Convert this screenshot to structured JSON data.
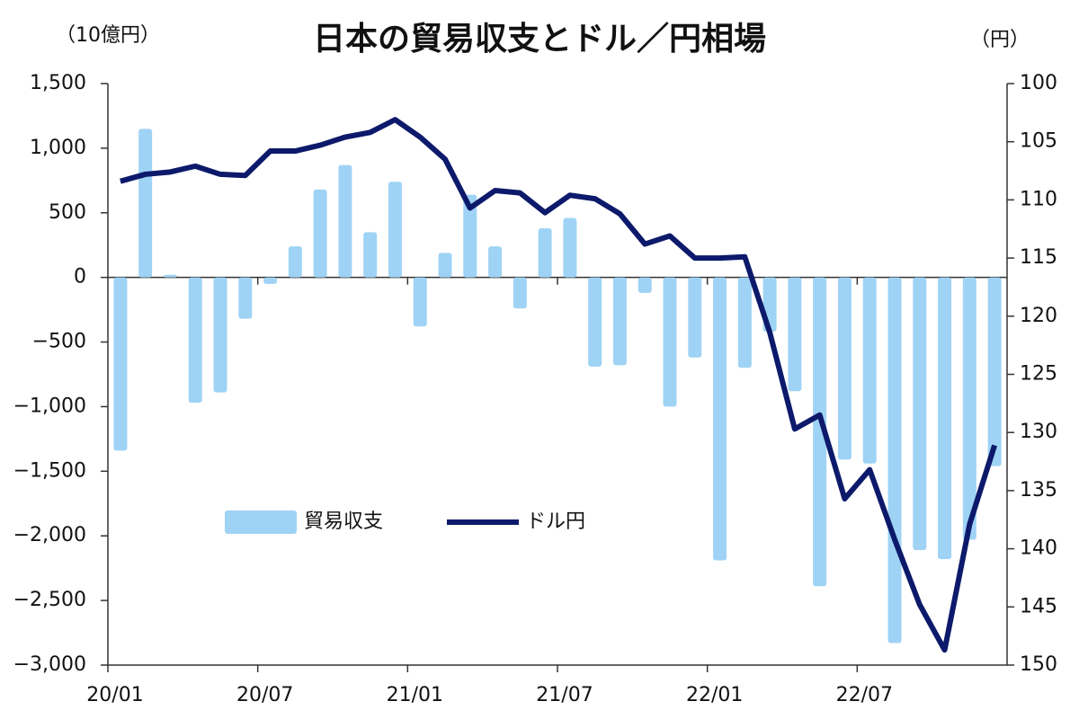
{
  "chart_data": {
    "type": "bar_line",
    "title": "日本の貿易収支とドル／円相場",
    "y_label": "（10億円）",
    "y2_label": "（円）",
    "categories": [
      "20/01",
      null,
      null,
      null,
      null,
      null,
      "20/07",
      null,
      null,
      null,
      null,
      null,
      "21/01",
      null,
      null,
      null,
      null,
      null,
      "21/07",
      null,
      null,
      null,
      null,
      null,
      "22/01",
      null,
      null,
      null,
      null,
      null,
      "22/07",
      null,
      null,
      null,
      null,
      null
    ],
    "series": [
      {
        "name": "貿易収支",
        "type": "bar",
        "color": "#9fd3f5",
        "values": [
          -1340,
          1150,
          20,
          -970,
          -890,
          -320,
          -50,
          240,
          680,
          870,
          350,
          740,
          -380,
          190,
          640,
          240,
          -240,
          380,
          460,
          -690,
          -680,
          -120,
          -1000,
          -620,
          -2190,
          -700,
          -420,
          -880,
          -2390,
          -1410,
          -1440,
          -2830,
          -2110,
          -2180,
          -2030,
          -1460
        ]
      },
      {
        "name": "ドル円",
        "type": "line",
        "color": "#0d1a6b",
        "axis": "y2",
        "values": [
          108.4,
          107.8,
          107.6,
          107.1,
          107.8,
          107.9,
          105.8,
          105.8,
          105.3,
          104.6,
          104.2,
          103.1,
          104.6,
          106.5,
          110.7,
          109.2,
          109.4,
          111.1,
          109.6,
          109.9,
          111.2,
          113.8,
          113.1,
          115.0,
          115.0,
          114.9,
          121.4,
          129.7,
          128.5,
          135.7,
          133.2,
          139.2,
          144.8,
          148.7,
          137.9,
          131.1
        ]
      }
    ],
    "ylim": [
      -3000,
      1500
    ],
    "yticks": [
      {
        "value": -3000,
        "label": "−3,000"
      },
      {
        "value": -2500,
        "label": "−2,500"
      },
      {
        "value": -2000,
        "label": "−2,000"
      },
      {
        "value": -1500,
        "label": "−1,500"
      },
      {
        "value": -1000,
        "label": "−1,000"
      },
      {
        "value": -500,
        "label": "−500"
      },
      0,
      500,
      {
        "value": 1000,
        "label": "1,000"
      },
      {
        "value": 1500,
        "label": "1,500"
      }
    ],
    "y2lim": [
      150,
      100
    ],
    "y2ticks": [
      100,
      105,
      110,
      115,
      120,
      125,
      130,
      135,
      140,
      145,
      150
    ],
    "negative_tick_color": "#e00000",
    "legend": "center-left"
  }
}
